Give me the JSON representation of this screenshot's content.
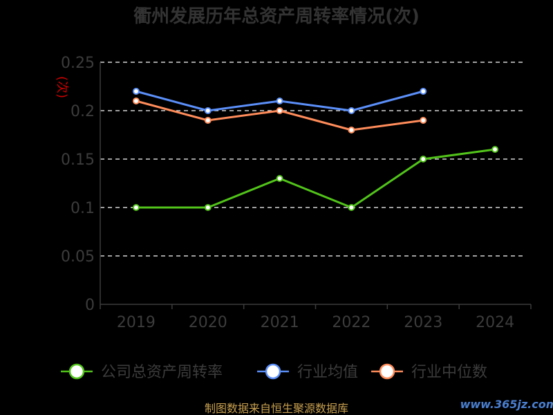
{
  "chart_data": {
    "type": "line",
    "title": "衢州发展历年总资产周转率情况(次)",
    "ylabel": "(次)",
    "categories": [
      "2019",
      "2020",
      "2021",
      "2022",
      "2023",
      "2024"
    ],
    "ylim": [
      0,
      0.25
    ],
    "yticks": [
      "0",
      "0.05",
      "0.1",
      "0.15",
      "0.2",
      "0.25"
    ],
    "grid": true,
    "legend_position": "bottom",
    "series": [
      {
        "name": "公司总资产周转率",
        "color": "#52c41a",
        "values": [
          0.1,
          0.1,
          0.13,
          0.1,
          0.15,
          0.16
        ]
      },
      {
        "name": "行业均值",
        "color": "#5b8ff9",
        "values": [
          0.22,
          0.2,
          0.21,
          0.2,
          0.22,
          null
        ]
      },
      {
        "name": "行业中位数",
        "color": "#ff8c5a",
        "values": [
          0.21,
          0.19,
          0.2,
          0.18,
          0.19,
          null
        ]
      }
    ]
  },
  "footer": {
    "source": "制图数据来自恒生聚源数据库",
    "watermark": "www.365jz.com"
  }
}
